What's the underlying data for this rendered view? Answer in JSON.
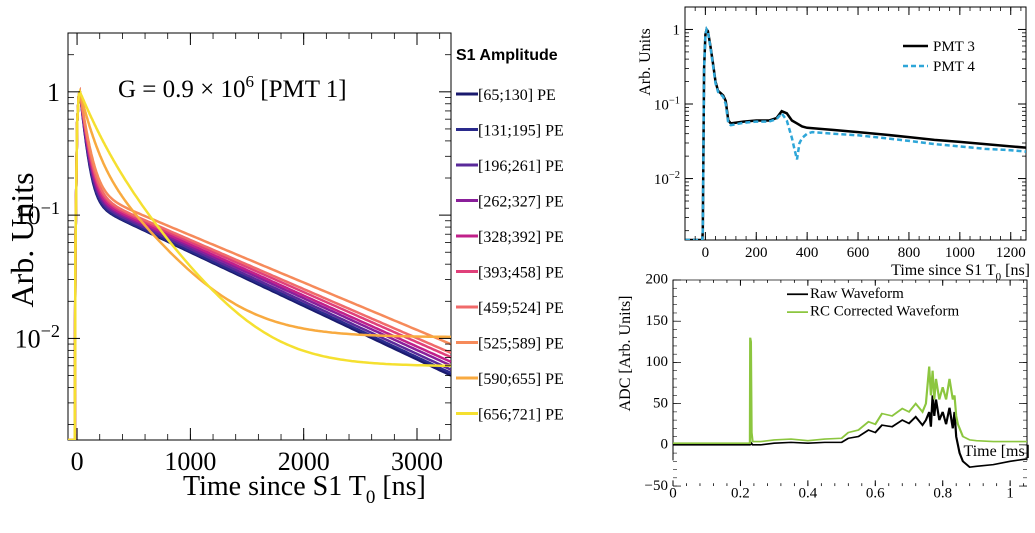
{
  "chart_data": [
    {
      "type": "line",
      "title": "",
      "annotation": "G = 0.9 × 10",
      "annotation_exp": "6",
      "annotation_tail": " [PMT 1]",
      "xlabel": "Time since S1 T",
      "xlabel_sub": "0",
      "xlabel_tail": " [ns]",
      "ylabel": "Arb. Units",
      "xlim": [
        -80,
        3300
      ],
      "ylim": [
        0.0015,
        3
      ],
      "yscale": "log",
      "xticks": [
        0,
        1000,
        2000,
        3000
      ],
      "yticks": [
        {
          "v": 1,
          "label": "1",
          "exp": ""
        },
        {
          "v": 0.1,
          "label": "10",
          "exp": "−1"
        },
        {
          "v": 0.01,
          "label": "10",
          "exp": "−2"
        }
      ],
      "legend_title": "S1 Amplitude",
      "legend_position": "right",
      "series": [
        {
          "name": "[65;130] PE",
          "color": "#1a1a6e",
          "peak": 1.0,
          "A": 0.82,
          "t1": 45,
          "B": 0.125,
          "t2": 1000,
          "C": 0.0
        },
        {
          "name": "[131;195] PE",
          "color": "#2a2a8c",
          "peak": 1.0,
          "A": 0.82,
          "t1": 46,
          "B": 0.127,
          "t2": 1010,
          "C": 0.0
        },
        {
          "name": "[196;261] PE",
          "color": "#5a2a9a",
          "peak": 1.0,
          "A": 0.81,
          "t1": 48,
          "B": 0.13,
          "t2": 1020,
          "C": 0.0
        },
        {
          "name": "[262;327] PE",
          "color": "#8a1f9a",
          "peak": 1.0,
          "A": 0.8,
          "t1": 50,
          "B": 0.133,
          "t2": 1035,
          "C": 0.0
        },
        {
          "name": "[328;392] PE",
          "color": "#c0208a",
          "peak": 1.0,
          "A": 0.79,
          "t1": 52,
          "B": 0.135,
          "t2": 1050,
          "C": 0.0
        },
        {
          "name": "[393;458] PE",
          "color": "#e0407a",
          "peak": 1.0,
          "A": 0.78,
          "t1": 55,
          "B": 0.138,
          "t2": 1070,
          "C": 0.0
        },
        {
          "name": "[459;524] PE",
          "color": "#f06a6a",
          "peak": 1.0,
          "A": 0.77,
          "t1": 58,
          "B": 0.14,
          "t2": 1090,
          "C": 0.0
        },
        {
          "name": "[525;589] PE",
          "color": "#f68a5a",
          "peak": 1.0,
          "A": 0.76,
          "t1": 62,
          "B": 0.148,
          "t2": 1130,
          "C": 0.0
        },
        {
          "name": "[590;655] PE",
          "color": "#f8aa40",
          "peak": 1.0,
          "A": 0.6,
          "t1": 90,
          "B": 0.29,
          "t2": 380,
          "C": 0.0092
        },
        {
          "name": "[656;721] PE",
          "color": "#f5e030",
          "peak": 1.0,
          "A": 0.45,
          "t1": 140,
          "B": 0.42,
          "t2": 360,
          "C": 0.0052
        }
      ]
    },
    {
      "type": "line",
      "ylabel": "Arb. Units",
      "xlabel": "Time since S1 T",
      "xlabel_sub": "0",
      "xlabel_tail": " [ns]",
      "xlim": [
        -80,
        1260
      ],
      "ylim": [
        0.0015,
        2
      ],
      "yscale": "log",
      "xticks": [
        0,
        200,
        400,
        600,
        800,
        1000,
        1200
      ],
      "yticks": [
        {
          "v": 1,
          "label": "1",
          "exp": ""
        },
        {
          "v": 0.1,
          "label": "10",
          "exp": "−1"
        },
        {
          "v": 0.01,
          "label": "10",
          "exp": "−2"
        }
      ],
      "legend_position": "top-right",
      "series": [
        {
          "name": "PMT 3",
          "color": "#000000",
          "style": "solid",
          "x": [
            -80,
            -12,
            -10,
            -5,
            0,
            5,
            10,
            20,
            30,
            40,
            50,
            60,
            70,
            80,
            90,
            100,
            150,
            200,
            250,
            280,
            300,
            320,
            340,
            360,
            380,
            400,
            500,
            600,
            700,
            800,
            900,
            1000,
            1100,
            1200,
            1260
          ],
          "y": [
            0.0015,
            0.0015,
            0.002,
            0.3,
            0.85,
            1.0,
            0.95,
            0.6,
            0.35,
            0.2,
            0.15,
            0.14,
            0.13,
            0.11,
            0.06,
            0.055,
            0.058,
            0.06,
            0.06,
            0.065,
            0.08,
            0.075,
            0.06,
            0.055,
            0.05,
            0.048,
            0.045,
            0.042,
            0.039,
            0.036,
            0.033,
            0.031,
            0.029,
            0.027,
            0.026
          ]
        },
        {
          "name": "PMT 4",
          "color": "#2ea6d8",
          "style": "dashed",
          "x": [
            -80,
            -12,
            -10,
            -5,
            0,
            5,
            10,
            20,
            30,
            40,
            50,
            60,
            70,
            80,
            90,
            100,
            150,
            200,
            250,
            280,
            300,
            320,
            340,
            350,
            360,
            370,
            380,
            400,
            420,
            500,
            600,
            700,
            800,
            900,
            1000,
            1100,
            1200,
            1260
          ],
          "y": [
            0.0015,
            0.0015,
            0.002,
            0.3,
            0.85,
            1.0,
            0.93,
            0.58,
            0.33,
            0.19,
            0.145,
            0.135,
            0.125,
            0.1,
            0.055,
            0.052,
            0.056,
            0.058,
            0.058,
            0.063,
            0.075,
            0.06,
            0.035,
            0.025,
            0.018,
            0.03,
            0.035,
            0.04,
            0.042,
            0.04,
            0.038,
            0.035,
            0.032,
            0.029,
            0.027,
            0.025,
            0.024,
            0.023
          ]
        }
      ]
    },
    {
      "type": "line",
      "ylabel": "ADC [Arb. Units]",
      "xlabel": "Time [ms]",
      "xlim": [
        0,
        1.05
      ],
      "ylim": [
        -50,
        200
      ],
      "xticks": [
        0,
        0.2,
        0.4,
        0.6,
        0.8,
        1
      ],
      "yticks": [
        -50,
        0,
        50,
        100,
        150,
        200
      ],
      "legend_position": "top-right",
      "series": [
        {
          "name": "Raw Waveform",
          "color": "#000000",
          "x": [
            0,
            0.1,
            0.2,
            0.228,
            0.232,
            0.236,
            0.26,
            0.3,
            0.35,
            0.4,
            0.45,
            0.5,
            0.52,
            0.55,
            0.58,
            0.6,
            0.62,
            0.65,
            0.68,
            0.7,
            0.72,
            0.74,
            0.75,
            0.76,
            0.765,
            0.77,
            0.775,
            0.78,
            0.79,
            0.8,
            0.81,
            0.82,
            0.83,
            0.835,
            0.84,
            0.85,
            0.86,
            0.88,
            0.9,
            0.95,
            1.0,
            1.05
          ],
          "y": [
            0,
            0,
            0,
            0,
            2,
            0,
            0,
            2,
            3,
            2,
            3,
            3,
            8,
            10,
            18,
            15,
            24,
            22,
            30,
            26,
            34,
            24,
            30,
            40,
            22,
            60,
            35,
            55,
            30,
            40,
            25,
            45,
            20,
            40,
            10,
            -10,
            -20,
            -27,
            -26,
            -24,
            -20,
            -17
          ]
        },
        {
          "name": "RC Corrected Waveform",
          "color": "#8cc63f",
          "x": [
            0,
            0.1,
            0.2,
            0.228,
            0.229,
            0.231,
            0.233,
            0.236,
            0.26,
            0.3,
            0.35,
            0.4,
            0.45,
            0.5,
            0.52,
            0.55,
            0.58,
            0.6,
            0.62,
            0.65,
            0.68,
            0.7,
            0.72,
            0.74,
            0.75,
            0.76,
            0.765,
            0.77,
            0.775,
            0.78,
            0.79,
            0.8,
            0.81,
            0.82,
            0.83,
            0.835,
            0.84,
            0.845,
            0.85,
            0.86,
            0.88,
            0.9,
            0.95,
            1.0,
            1.05
          ],
          "y": [
            2,
            2,
            2,
            2,
            130,
            125,
            15,
            4,
            4,
            6,
            7,
            5,
            7,
            8,
            15,
            18,
            28,
            25,
            38,
            35,
            44,
            40,
            50,
            40,
            50,
            95,
            60,
            90,
            55,
            80,
            55,
            70,
            55,
            80,
            55,
            60,
            35,
            25,
            20,
            10,
            6,
            5,
            4,
            4,
            4
          ]
        }
      ]
    }
  ]
}
